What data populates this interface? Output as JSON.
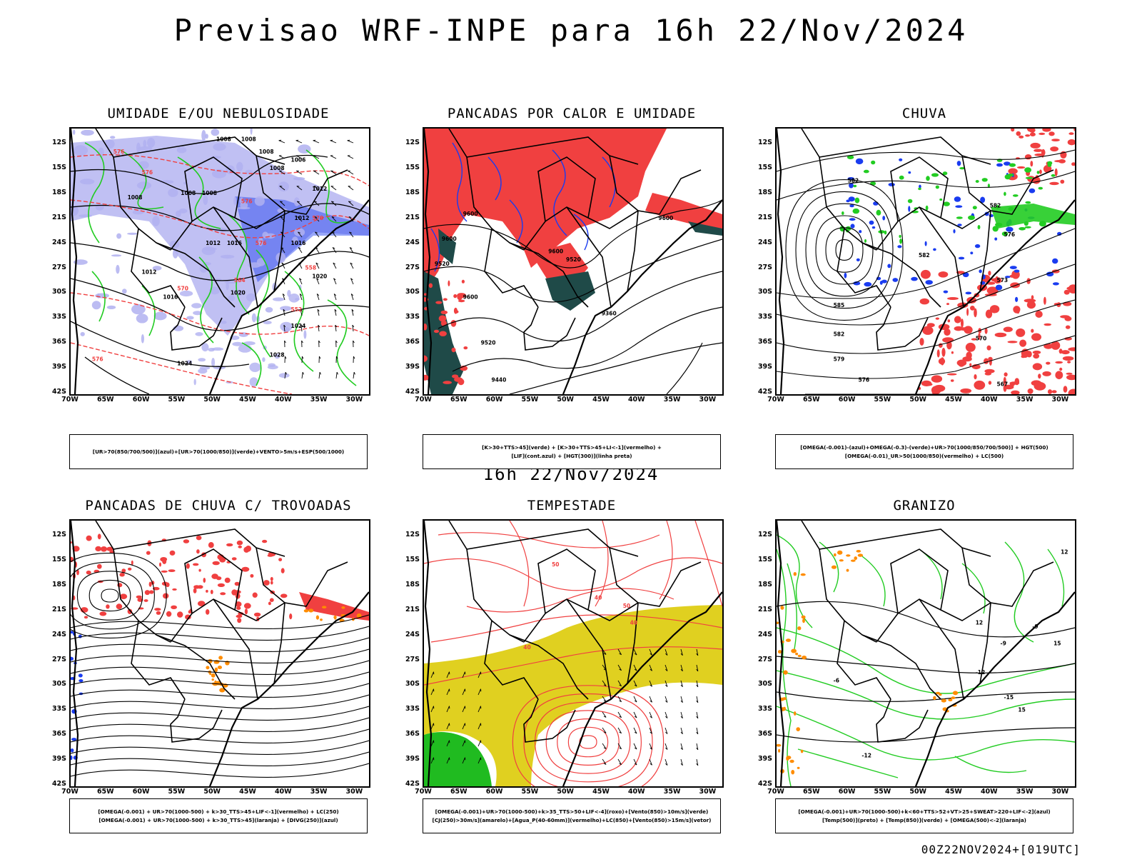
{
  "header": {
    "title": "Previsao WRF-INPE  para 16h 22/Nov/2024",
    "mid_date": "16h 22/Nov/2024",
    "run_label": "00Z22NOV2024+[019UTC]"
  },
  "axes": {
    "lat_ticks": [
      "12S",
      "15S",
      "18S",
      "21S",
      "24S",
      "27S",
      "30S",
      "33S",
      "36S",
      "39S",
      "42S"
    ],
    "lon_ticks": [
      "70W",
      "65W",
      "60W",
      "55W",
      "50W",
      "45W",
      "40W",
      "35W",
      "30W"
    ]
  },
  "chart_data": [
    {
      "type": "map",
      "id": "umidade",
      "title": "UMIDADE E/OU NEBULOSIDADE",
      "xrange_lon": [
        -70,
        -28
      ],
      "yrange_lat": [
        -42,
        -10
      ],
      "legend_lines": [
        "[UR>70(850/700/500)](azul)+[UR>70(1000/850)](verde)+VENTO>5m/s+ESP(500/1000)"
      ],
      "contour_labels": [
        {
          "text": "1008",
          "lon": -49.5,
          "lat": -11.5
        },
        {
          "text": "1008",
          "lon": -43.5,
          "lat": -13
        },
        {
          "text": "1008",
          "lon": -46,
          "lat": -11.5
        },
        {
          "text": "1006",
          "lon": -39,
          "lat": -14
        },
        {
          "text": "1008",
          "lon": -42,
          "lat": -15
        },
        {
          "text": "1008",
          "lon": -62,
          "lat": -18.5
        },
        {
          "text": "1008",
          "lon": -54.5,
          "lat": -18
        },
        {
          "text": "1008",
          "lon": -51.5,
          "lat": -18
        },
        {
          "text": "1012",
          "lon": -36,
          "lat": -17.5
        },
        {
          "text": "1012",
          "lon": -38.5,
          "lat": -21
        },
        {
          "text": "1012",
          "lon": -51,
          "lat": -24
        },
        {
          "text": "1016",
          "lon": -48,
          "lat": -24
        },
        {
          "text": "1016",
          "lon": -39,
          "lat": -24
        },
        {
          "text": "1012",
          "lon": -60,
          "lat": -27.5
        },
        {
          "text": "1020",
          "lon": -36,
          "lat": -28
        },
        {
          "text": "1020",
          "lon": -47.5,
          "lat": -30
        },
        {
          "text": "1016",
          "lon": -57,
          "lat": -30.5
        },
        {
          "text": "1024",
          "lon": -39,
          "lat": -34
        },
        {
          "text": "1028",
          "lon": -42,
          "lat": -37.5
        },
        {
          "text": "1024",
          "lon": -55,
          "lat": -38.5
        }
      ],
      "thickness_labels": [
        {
          "text": "576",
          "lon": -64,
          "lat": -13
        },
        {
          "text": "576",
          "lon": -60,
          "lat": -15.5
        },
        {
          "text": "576",
          "lon": -46,
          "lat": -19
        },
        {
          "text": "570",
          "lon": -36,
          "lat": -21
        },
        {
          "text": "576",
          "lon": -44,
          "lat": -24
        },
        {
          "text": "564",
          "lon": -47,
          "lat": -28.5
        },
        {
          "text": "570",
          "lon": -55,
          "lat": -29.5
        },
        {
          "text": "558",
          "lon": -37,
          "lat": -27
        },
        {
          "text": "552",
          "lon": -39,
          "lat": -32
        },
        {
          "text": "576",
          "lon": -67,
          "lat": -38
        }
      ]
    },
    {
      "type": "map",
      "id": "pancadas_calor",
      "title": "PANCADAS POR CALOR E UMIDADE",
      "xrange_lon": [
        -70,
        -28
      ],
      "yrange_lat": [
        -42,
        -10
      ],
      "legend_lines": [
        "[K>30+TTS>45](verde) + [K>30+TTS>45+LI<-1](vermelho) +",
        "[LIF](cont.azul) + [HGT(300)](linha preta)"
      ],
      "contour_labels": [
        {
          "text": "9600",
          "lon": -64.5,
          "lat": -20.5
        },
        {
          "text": "9600",
          "lon": -67.5,
          "lat": -23.5
        },
        {
          "text": "9520",
          "lon": -68.5,
          "lat": -26.5
        },
        {
          "text": "9600",
          "lon": -64.5,
          "lat": -30.5
        },
        {
          "text": "9520",
          "lon": -62,
          "lat": -36
        },
        {
          "text": "9440",
          "lon": -60.5,
          "lat": -40.5
        },
        {
          "text": "9600",
          "lon": -52.5,
          "lat": -25
        },
        {
          "text": "9520",
          "lon": -50,
          "lat": -26
        },
        {
          "text": "9360",
          "lon": -45,
          "lat": -32.5
        },
        {
          "text": "9600",
          "lon": -37,
          "lat": -21
        }
      ]
    },
    {
      "type": "map",
      "id": "chuva",
      "title": "CHUVA",
      "xrange_lon": [
        -70,
        -28
      ],
      "yrange_lat": [
        -42,
        -10
      ],
      "legend_lines": [
        "[OMEGA(-0.001)-(azul)+OMEGA(-0.3)-(verde)+UR>70(1000/850/700/500)] + HGT(500)",
        "[OMEGA(-0.01)_UR>50(1000/850)(vermelho) + LC(500)"
      ],
      "contour_labels": [
        {
          "text": "582",
          "lon": -60,
          "lat": -16.5
        },
        {
          "text": "582",
          "lon": -40,
          "lat": -19.5
        },
        {
          "text": "576",
          "lon": -38,
          "lat": -23
        },
        {
          "text": "582",
          "lon": -50,
          "lat": -25.5
        },
        {
          "text": "573",
          "lon": -39,
          "lat": -28.5
        },
        {
          "text": "585",
          "lon": -62,
          "lat": -31.5
        },
        {
          "text": "582",
          "lon": -62,
          "lat": -35
        },
        {
          "text": "579",
          "lon": -62,
          "lat": -38
        },
        {
          "text": "576",
          "lon": -58.5,
          "lat": -40.5
        },
        {
          "text": "570",
          "lon": -42,
          "lat": -35.5
        },
        {
          "text": "567",
          "lon": -39,
          "lat": -41
        }
      ]
    },
    {
      "type": "map",
      "id": "trovoadas",
      "title": "PANCADAS DE CHUVA C/ TROVOADAS",
      "xrange_lon": [
        -70,
        -28
      ],
      "yrange_lat": [
        -42,
        -10
      ],
      "legend_lines": [
        "[OMEGA(-0.001) + UR>70(1000-500) + k>30_TTS>45+LIF<-1](vermelho) + LC(250)",
        "[OMEGA(-0.001) + UR>70(1000-500) + k>30_TTS>45](laranja) + [DIVG(250)](azul)"
      ],
      "contour_labels": []
    },
    {
      "type": "map",
      "id": "tempestade",
      "title": "TEMPESTADE",
      "xrange_lon": [
        -70,
        -28
      ],
      "yrange_lat": [
        -42,
        -10
      ],
      "legend_lines": [
        "[OMEGA(-0.001)+UR>70(1000-500)+k>35_TTS>50+LIF<-4](roxo)+[Vento(850)>10m/s](verde)",
        "[CJ(250)>30m/s](amarelo)+[Agua_P(40-60mm)](vermelho)+LC(850)+[Vento(850)>15m/s](vetor)"
      ],
      "contour_labels": [
        {
          "text": "50",
          "lon": -42,
          "lat": -20.5
        },
        {
          "text": "40",
          "lon": -41,
          "lat": -22.5
        },
        {
          "text": "40",
          "lon": -56,
          "lat": -25.5
        },
        {
          "text": "50",
          "lon": -52,
          "lat": -15.5
        },
        {
          "text": "40",
          "lon": -46,
          "lat": -19.5
        }
      ]
    },
    {
      "type": "map",
      "id": "granizo",
      "title": "GRANIZO",
      "xrange_lon": [
        -70,
        -28
      ],
      "yrange_lat": [
        -42,
        -10
      ],
      "legend_lines": [
        "[OMEGA(-0.001)+UR>70(1000-500)+k<60+TTS>52+VT>25+SWEAT>220+LIF<-2](azul)",
        "[Temp(500)](preto) + [Temp(850)](verde) + [OMEGA(500)<-2](laranja)"
      ],
      "contour_labels": [
        {
          "text": "-9",
          "lon": -34,
          "lat": -23
        },
        {
          "text": "-12",
          "lon": -42,
          "lat": -28.5
        },
        {
          "text": "-15",
          "lon": -38,
          "lat": -31.5
        },
        {
          "text": "15",
          "lon": -36,
          "lat": -33
        },
        {
          "text": "12",
          "lon": -42,
          "lat": -22.5
        },
        {
          "text": "12",
          "lon": -30,
          "lat": -14
        },
        {
          "text": "15",
          "lon": -31,
          "lat": -25
        },
        {
          "text": "-6",
          "lon": -62,
          "lat": -29.5
        },
        {
          "text": "-12",
          "lon": -58,
          "lat": -38.5
        },
        {
          "text": "-9",
          "lon": -38.5,
          "lat": -25
        }
      ]
    }
  ],
  "colors": {
    "red": "#f04040",
    "blue": "#1a3cf0",
    "lavender": "#b0b0f0",
    "green": "#22cc22",
    "teal": "#1f4a48",
    "yellow": "#e0d020",
    "orange": "#ff8c00",
    "black": "#000000"
  }
}
